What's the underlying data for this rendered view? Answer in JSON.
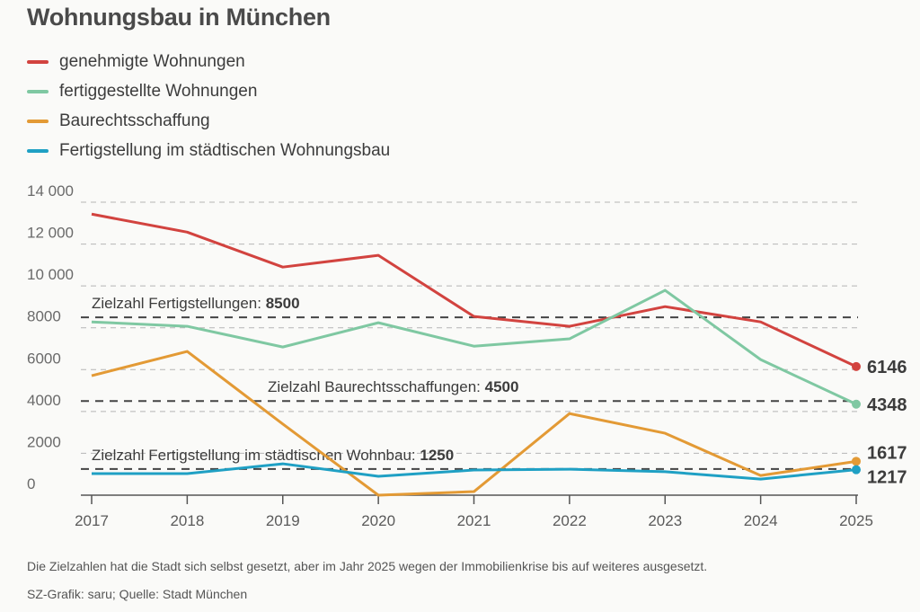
{
  "chart_data": {
    "type": "line",
    "title": "Wohnungsbau in München",
    "x": [
      2017,
      2018,
      2019,
      2020,
      2021,
      2022,
      2023,
      2024,
      2025
    ],
    "ylim": [
      0,
      14000
    ],
    "yticks": [
      0,
      2000,
      4000,
      6000,
      8000,
      10000,
      12000,
      14000
    ],
    "ytick_labels": [
      "0",
      "2000",
      "4000",
      "6000",
      "8000",
      "10 000",
      "12 000",
      "14 000"
    ],
    "grid": true,
    "legend_position": "top-left",
    "series": [
      {
        "name": "genehmigte Wohnungen",
        "color": "#d2433f",
        "values": [
          13430,
          12570,
          10900,
          11460,
          8540,
          8070,
          9010,
          8280,
          6146
        ],
        "end_label": "6146"
      },
      {
        "name": "fertiggestellte Wohnungen",
        "color": "#7fc8a2",
        "values": [
          8280,
          8070,
          7080,
          8240,
          7120,
          7470,
          9790,
          6480,
          4348
        ],
        "end_label": "4348"
      },
      {
        "name": "Baurechtsschaffung",
        "color": "#e39a35",
        "values": [
          5710,
          6870,
          3400,
          0,
          170,
          3900,
          2960,
          940,
          1617
        ],
        "end_label": "1617"
      },
      {
        "name": "Fertigstellung im städtischen Wohnungsbau",
        "color": "#1fa0c4",
        "values": [
          1030,
          1030,
          1500,
          900,
          1200,
          1240,
          1120,
          770,
          1217
        ],
        "end_label": "1217"
      }
    ],
    "reference_lines": [
      {
        "label": "Zielzahl Fertigstellungen: ",
        "value_label": "8500",
        "value": 8500
      },
      {
        "label": "Zielzahl Baurechtsschaffungen: ",
        "value_label": "4500",
        "value": 4500
      },
      {
        "label": "Zielzahl Fertigstellung im städtischen Wohnbau: ",
        "value_label": "1250",
        "value": 1250
      }
    ]
  },
  "footer": {
    "note": "Die Zielzahlen hat die Stadt sich selbst gesetzt, aber im Jahr 2025 wegen der Immobilienkrise bis auf weiteres ausgesetzt.",
    "source": "SZ-Grafik: saru; Quelle: Stadt München"
  }
}
